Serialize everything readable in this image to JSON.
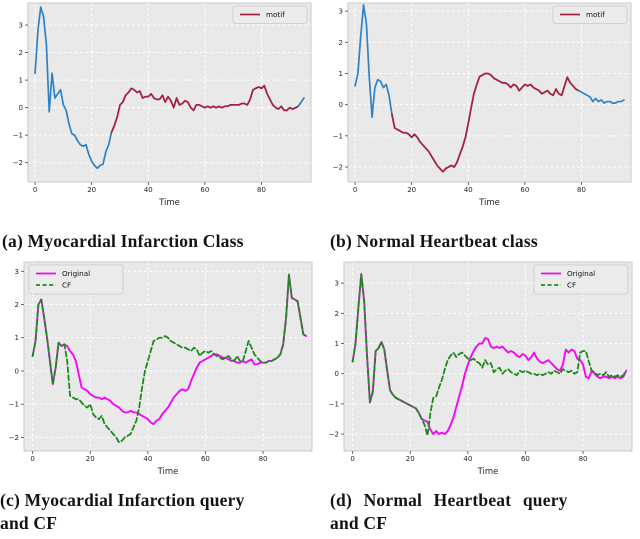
{
  "figure": {
    "captions": {
      "a": "(a) Myocardial Infarction Class",
      "b": "(b) Normal Heartbeat class",
      "c_line1": "(c) Myocardial Infarction query",
      "c_line2": "and CF",
      "d_line1": "(d) Normal Heartbeat query",
      "d_line2": "and CF"
    }
  },
  "colors": {
    "signal_blue": "#2f82c3",
    "motif_crimson": "#a32240",
    "original_magenta": "#f407f4",
    "cf_green": "#1a8a1a",
    "plot_bg": "#e9e9e9",
    "grid": "#ffffff",
    "spine": "#c9c9c9",
    "tick_text": "#262626",
    "legend_bg": "#ebebeb",
    "legend_border": "#c8c8c8"
  },
  "chart_data": [
    {
      "id": "a",
      "type": "line",
      "title": "",
      "xlabel": "Time",
      "ylabel": "",
      "xticks": [
        0,
        20,
        40,
        60,
        80
      ],
      "yticks": [
        -2,
        -1,
        0,
        1,
        2,
        3
      ],
      "xlim": [
        -2.5,
        97.5
      ],
      "ylim": [
        -2.7,
        3.8
      ],
      "grid": true,
      "motif_span": [
        27,
        93
      ],
      "legend": {
        "position": "top-right",
        "entries": [
          {
            "label": "motif",
            "color": "#a32240",
            "dash": false
          }
        ]
      },
      "series": [
        {
          "name": "signal-pre-motif",
          "color": "#2f82c3",
          "dash": false,
          "width": 1.7,
          "x_start": 0,
          "values": [
            1.25,
            2.8,
            3.65,
            3.3,
            2.3,
            -0.15,
            1.25,
            0.35,
            0.5,
            0.65,
            0.1,
            -0.1,
            -0.6,
            -0.95,
            -1.0,
            -1.2,
            -1.35,
            -1.4,
            -1.35,
            -1.7,
            -1.95,
            -2.1,
            -2.2,
            -2.1,
            -2.05,
            -1.6,
            -1.35,
            -0.9
          ]
        },
        {
          "name": "motif",
          "color": "#a32240",
          "dash": false,
          "width": 1.8,
          "x_start": 27,
          "values": [
            -0.9,
            -0.65,
            -0.35,
            0.1,
            0.2,
            0.45,
            0.55,
            0.7,
            0.65,
            0.55,
            0.6,
            0.35,
            0.4,
            0.4,
            0.5,
            0.35,
            0.3,
            0.3,
            0.45,
            0.2,
            0.4,
            0.25,
            0.0,
            0.35,
            0.1,
            0.15,
            0.25,
            0.2,
            0.0,
            -0.1,
            0.1,
            0.1,
            0.05,
            0.0,
            0.05,
            0.0,
            0.05,
            0.0,
            0.05,
            0.0,
            0.05,
            0.05,
            0.1,
            0.1,
            0.1,
            0.1,
            0.15,
            0.15,
            0.1,
            0.3,
            0.65,
            0.7,
            0.75,
            0.7,
            0.8,
            0.5,
            0.3,
            0.1,
            0.0,
            -0.05,
            0.05,
            -0.1,
            -0.1,
            0.0,
            -0.05,
            0.0,
            0.05
          ]
        },
        {
          "name": "signal-post-motif",
          "color": "#2f82c3",
          "dash": false,
          "width": 1.7,
          "x_start": 93,
          "values": [
            0.05,
            0.2,
            0.35
          ]
        }
      ]
    },
    {
      "id": "b",
      "type": "line",
      "title": "",
      "xlabel": "Time",
      "ylabel": "",
      "xticks": [
        0,
        20,
        40,
        60,
        80
      ],
      "yticks": [
        -2,
        -1,
        0,
        1,
        2,
        3
      ],
      "xlim": [
        -2.5,
        97.5
      ],
      "ylim": [
        -2.48,
        3.26
      ],
      "grid": true,
      "motif_span": [
        13,
        79
      ],
      "legend": {
        "position": "top-right",
        "entries": [
          {
            "label": "motif",
            "color": "#a32240",
            "dash": false
          }
        ]
      },
      "series": [
        {
          "name": "signal-pre-motif",
          "color": "#2f82c3",
          "dash": false,
          "width": 1.7,
          "x_start": 0,
          "values": [
            0.6,
            1.0,
            2.2,
            3.2,
            2.6,
            0.9,
            -0.4,
            0.55,
            0.8,
            0.75,
            0.55,
            0.65,
            0.3,
            -0.3
          ]
        },
        {
          "name": "motif",
          "color": "#a32240",
          "dash": false,
          "width": 1.8,
          "x_start": 13,
          "values": [
            -0.3,
            -0.75,
            -0.8,
            -0.85,
            -0.9,
            -0.9,
            -0.95,
            -1.05,
            -0.95,
            -1.05,
            -1.2,
            -1.3,
            -1.4,
            -1.5,
            -1.65,
            -1.8,
            -1.95,
            -2.05,
            -2.15,
            -2.05,
            -2.0,
            -1.95,
            -2.0,
            -1.85,
            -1.6,
            -1.35,
            -1.05,
            -0.6,
            -0.1,
            0.35,
            0.65,
            0.9,
            0.95,
            1.0,
            1.0,
            0.95,
            0.85,
            0.8,
            0.75,
            0.7,
            0.7,
            0.65,
            0.55,
            0.65,
            0.6,
            0.45,
            0.55,
            0.65,
            0.6,
            0.65,
            0.55,
            0.5,
            0.45,
            0.35,
            0.4,
            0.45,
            0.35,
            0.3,
            0.5,
            0.35,
            0.3,
            0.6,
            0.88,
            0.7,
            0.6,
            0.5,
            0.45
          ]
        },
        {
          "name": "signal-post-motif",
          "color": "#2f82c3",
          "dash": false,
          "width": 1.7,
          "x_start": 79,
          "values": [
            0.45,
            0.4,
            0.35,
            0.3,
            0.25,
            0.1,
            0.2,
            0.1,
            0.15,
            0.05,
            0.1,
            0.1,
            0.05,
            0.05,
            0.1,
            0.1,
            0.15
          ]
        }
      ]
    },
    {
      "id": "c",
      "type": "line",
      "title": "",
      "xlabel": "Time",
      "ylabel": "",
      "xticks": [
        0,
        20,
        40,
        60,
        80
      ],
      "yticks": [
        -2,
        -1,
        0,
        1,
        2,
        3
      ],
      "xlim": [
        -3,
        97
      ],
      "ylim": [
        -2.41,
        3.28
      ],
      "grid": true,
      "legend": {
        "position": "top-left",
        "entries": [
          {
            "label": "Original",
            "color": "#f407f4",
            "dash": false
          },
          {
            "label": "CF",
            "color": "#1a8a1a",
            "dash": true
          }
        ]
      },
      "series": [
        {
          "name": "Original",
          "color": "#f407f4",
          "dash": false,
          "width": 1.9,
          "x_start": 0,
          "values": [
            0.45,
            0.9,
            2.0,
            2.15,
            1.6,
            1.0,
            0.3,
            -0.4,
            0.1,
            0.85,
            0.75,
            0.8,
            0.75,
            0.6,
            0.5,
            0.3,
            -0.1,
            -0.5,
            -0.55,
            -0.6,
            -0.7,
            -0.75,
            -0.8,
            -0.8,
            -0.85,
            -0.8,
            -0.85,
            -0.9,
            -1.0,
            -1.05,
            -1.1,
            -1.2,
            -1.25,
            -1.25,
            -1.2,
            -1.25,
            -1.25,
            -1.3,
            -1.35,
            -1.4,
            -1.45,
            -1.55,
            -1.6,
            -1.5,
            -1.45,
            -1.3,
            -1.2,
            -1.1,
            -0.95,
            -0.8,
            -0.7,
            -0.6,
            -0.55,
            -0.6,
            -0.55,
            -0.3,
            -0.1,
            0.1,
            0.25,
            0.3,
            0.35,
            0.4,
            0.45,
            0.5,
            0.5,
            0.45,
            0.4,
            0.4,
            0.35,
            0.3,
            0.3,
            0.25,
            0.25,
            0.3,
            0.25,
            0.3,
            0.35,
            0.2,
            0.2,
            0.25,
            0.25,
            0.25,
            0.3,
            0.3,
            0.35,
            0.4,
            0.5,
            0.8,
            1.6,
            2.9,
            2.2,
            2.15,
            2.1,
            1.6,
            1.1,
            1.05
          ]
        },
        {
          "name": "CF",
          "color": "#1a8a1a",
          "dash": true,
          "width": 1.8,
          "x_start": 0,
          "values": [
            0.45,
            0.9,
            2.0,
            2.15,
            1.6,
            1.0,
            0.3,
            -0.4,
            0.1,
            0.85,
            0.75,
            0.8,
            0.3,
            -0.75,
            -0.8,
            -0.85,
            -0.85,
            -0.95,
            -1.05,
            -1.1,
            -1.0,
            -1.3,
            -1.4,
            -1.45,
            -1.35,
            -1.6,
            -1.7,
            -1.8,
            -1.9,
            -2.0,
            -2.15,
            -2.1,
            -2.0,
            -1.95,
            -1.9,
            -1.7,
            -1.5,
            -1.1,
            -0.5,
            0.0,
            0.3,
            0.6,
            0.9,
            0.95,
            1.0,
            1.0,
            1.05,
            1.0,
            0.9,
            0.85,
            0.8,
            0.75,
            0.7,
            0.7,
            0.65,
            0.6,
            0.7,
            0.65,
            0.45,
            0.55,
            0.6,
            0.55,
            0.6,
            0.5,
            0.45,
            0.4,
            0.35,
            0.4,
            0.45,
            0.35,
            0.3,
            0.45,
            0.3,
            0.3,
            0.6,
            0.9,
            0.7,
            0.5,
            0.4,
            0.3,
            0.25,
            0.25,
            0.3,
            0.3,
            0.35,
            0.4,
            0.5,
            0.8,
            1.6,
            2.9,
            2.2,
            2.15,
            2.1,
            1.6,
            1.1,
            1.05
          ]
        }
      ]
    },
    {
      "id": "d",
      "type": "line",
      "title": "",
      "xlabel": "Time",
      "ylabel": "",
      "xticks": [
        0,
        20,
        40,
        60,
        80
      ],
      "yticks": [
        -2,
        -1,
        0,
        1,
        2,
        3
      ],
      "xlim": [
        -3,
        97
      ],
      "ylim": [
        -2.56,
        3.7
      ],
      "grid": true,
      "legend": {
        "position": "top-right",
        "entries": [
          {
            "label": "Original",
            "color": "#f407f4",
            "dash": false
          },
          {
            "label": "CF",
            "color": "#1a8a1a",
            "dash": true
          }
        ]
      },
      "series": [
        {
          "name": "Original",
          "color": "#f407f4",
          "dash": false,
          "width": 1.9,
          "x_start": 0,
          "values": [
            0.4,
            1.0,
            2.2,
            3.3,
            2.4,
            0.6,
            -0.95,
            -0.6,
            0.75,
            0.85,
            1.05,
            0.8,
            0.1,
            -0.55,
            -0.7,
            -0.8,
            -0.85,
            -0.9,
            -0.95,
            -1.0,
            -1.05,
            -1.1,
            -1.15,
            -1.3,
            -1.5,
            -1.55,
            -1.6,
            -1.85,
            -2.0,
            -1.9,
            -2.0,
            -1.95,
            -2.0,
            -1.9,
            -1.7,
            -1.45,
            -1.1,
            -0.75,
            -0.4,
            0.0,
            0.3,
            0.55,
            0.75,
            0.9,
            1.0,
            1.0,
            1.18,
            1.15,
            0.9,
            0.85,
            0.9,
            0.85,
            0.9,
            0.8,
            0.7,
            0.75,
            0.7,
            0.6,
            0.55,
            0.65,
            0.6,
            0.45,
            0.55,
            0.7,
            0.5,
            0.4,
            0.35,
            0.4,
            0.45,
            0.35,
            0.25,
            0.15,
            0.1,
            0.3,
            0.8,
            0.7,
            0.8,
            0.75,
            0.5,
            0.45,
            0.3,
            -0.1,
            -0.15,
            0.1,
            0.0,
            -0.1,
            -0.15,
            -0.1,
            -0.1,
            -0.15,
            -0.1,
            -0.15,
            -0.1,
            -0.15,
            -0.1,
            0.1
          ]
        },
        {
          "name": "CF",
          "color": "#1a8a1a",
          "dash": true,
          "width": 1.8,
          "x_start": 0,
          "values": [
            0.4,
            1.0,
            2.2,
            3.3,
            2.4,
            0.6,
            -0.95,
            -0.6,
            0.75,
            0.85,
            1.05,
            0.8,
            0.1,
            -0.55,
            -0.7,
            -0.8,
            -0.85,
            -0.9,
            -0.95,
            -1.0,
            -1.05,
            -1.1,
            -1.15,
            -1.3,
            -1.5,
            -1.7,
            -2.05,
            -1.3,
            -0.8,
            -0.75,
            -0.45,
            -0.2,
            0.15,
            0.45,
            0.6,
            0.7,
            0.55,
            0.65,
            0.7,
            0.6,
            0.5,
            0.45,
            0.5,
            0.4,
            0.35,
            0.2,
            0.45,
            0.3,
            0.35,
            0.05,
            0.15,
            0.2,
            0.0,
            0.1,
            0.15,
            0.05,
            0.0,
            -0.05,
            0.1,
            0.05,
            0.1,
            0.05,
            0.0,
            0.0,
            -0.05,
            0.0,
            -0.05,
            0.0,
            0.05,
            0.0,
            0.1,
            0.05,
            0.0,
            0.15,
            0.1,
            0.05,
            0.1,
            0.0,
            0.05,
            0.7,
            0.75,
            0.75,
            0.4,
            0.1,
            0.05,
            -0.05,
            0.0,
            -0.05,
            0.05,
            -0.1,
            -0.05,
            -0.1,
            -0.05,
            -0.1,
            -0.05,
            0.1
          ]
        }
      ]
    }
  ]
}
